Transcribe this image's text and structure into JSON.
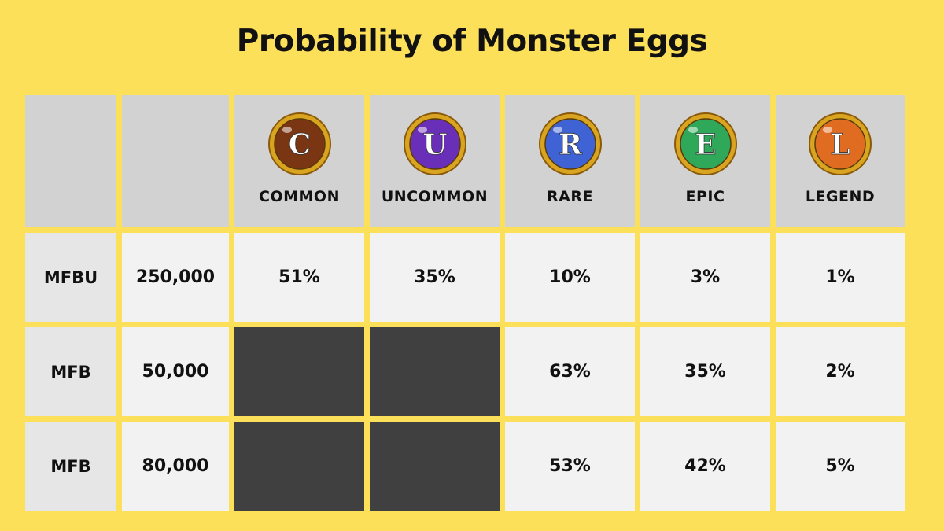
{
  "title": "Probability of Monster Eggs",
  "chart_data": {
    "type": "table",
    "title": "Probability of Monster Eggs",
    "columns": [
      {
        "name": "COMMON",
        "letter": "C",
        "color": "#7a3512"
      },
      {
        "name": "UNCOMMON",
        "letter": "U",
        "color": "#6a2fb8"
      },
      {
        "name": "RARE",
        "letter": "R",
        "color": "#3f63d4"
      },
      {
        "name": "EPIC",
        "letter": "E",
        "color": "#2fa85a"
      },
      {
        "name": "LEGEND",
        "letter": "L",
        "color": "#e06c22"
      }
    ],
    "rows": [
      {
        "label": "MFBU",
        "amount": "250,000",
        "values": [
          "51%",
          "35%",
          "10%",
          "3%",
          "1%"
        ]
      },
      {
        "label": "MFB",
        "amount": "50,000",
        "values": [
          null,
          null,
          "63%",
          "35%",
          "2%"
        ]
      },
      {
        "label": "MFB",
        "amount": "80,000",
        "values": [
          null,
          null,
          "53%",
          "42%",
          "5%"
        ]
      }
    ]
  },
  "colors": {
    "background": "#fde05a",
    "header_cell": "#d2d2d2",
    "label_cell": "#e6e6e6",
    "value_cell": "#f2f2f2",
    "unavailable_cell": "#404040",
    "egg_rim": "#d9a520"
  }
}
